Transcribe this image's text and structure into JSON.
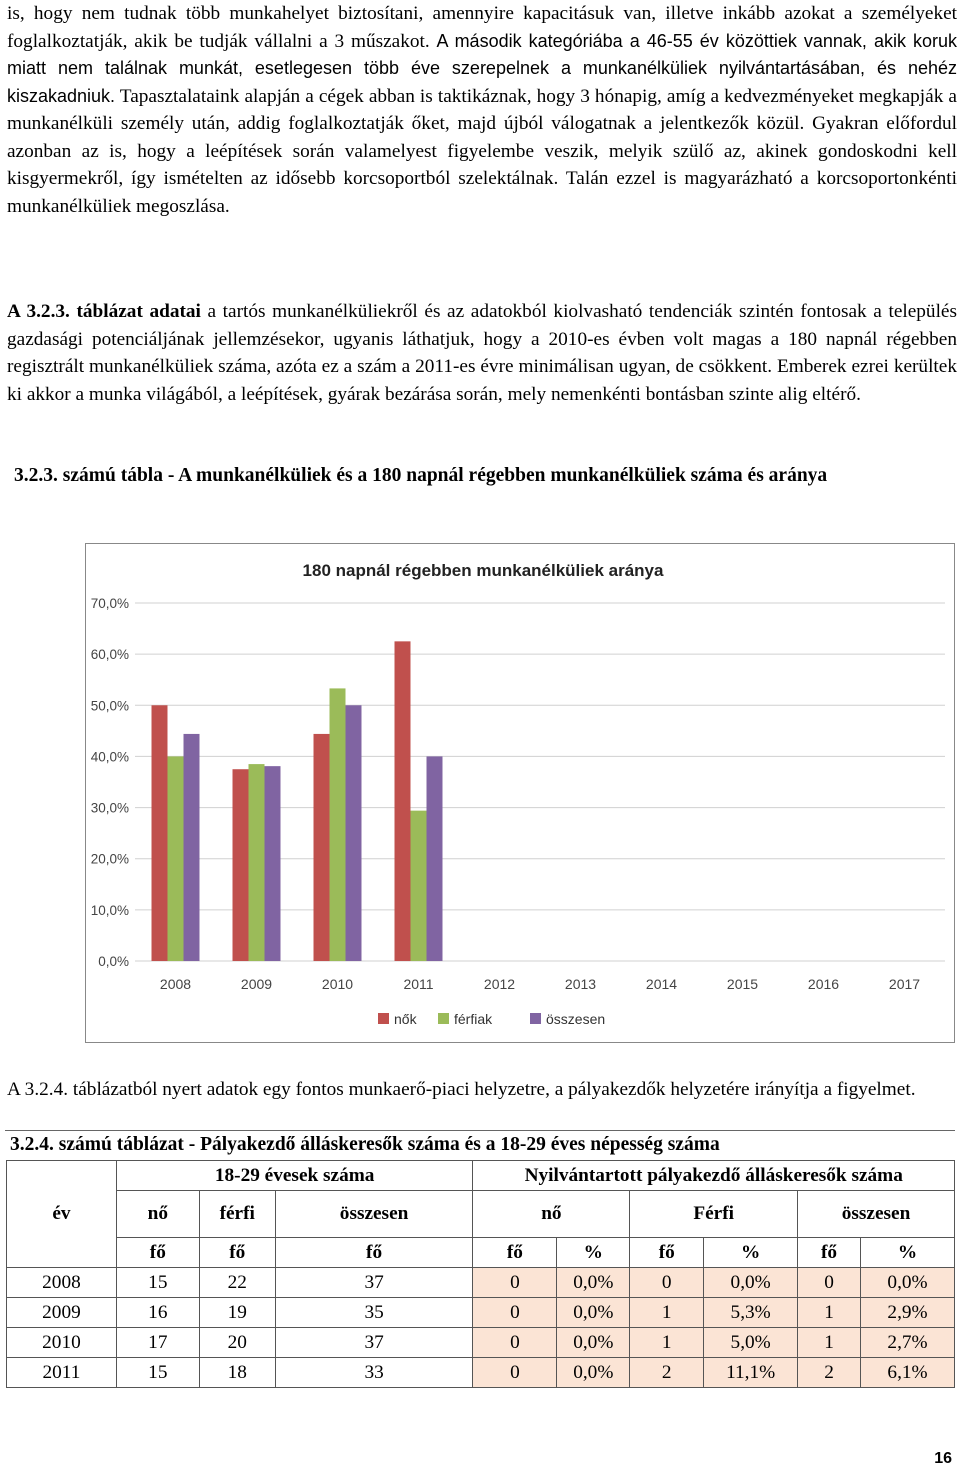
{
  "para1": {
    "line1": "is, hogy nem tudnak több munkahelyet biztosítani, amennyire kapacitásuk van, illetve inkább azokat a személyeket foglalkoztatják, akik be tudják vállalni a 3 műszakot.",
    "line2": "A második kategóriába a 46-55 év közöttiek vannak, akik koruk miatt nem találnak munkát, esetlegesen több éve szerepelnek a munkanélküliek nyilvántartásában, és nehéz kiszakadniuk.",
    "line3": "Tapasztalataink alapján a cégek abban is taktikáznak, hogy 3 hónapig, amíg a kedvezményeket megkapják a munkanélküli személy után, addig foglalkoztatják őket, majd újból válogatnak a jelentkezők közül.",
    "line4": "Gyakran előfordul azonban az is, hogy a leépítések során valamelyest figyelembe veszik, melyik szülő az, akinek gondoskodni kell kisgyermekről, így ismételten az idősebb korcsoportból szelektálnak. Talán ezzel is magyarázható a korcsoportonkénti munkanélküliek megoszlása."
  },
  "para2": {
    "bold": "A 3.2.3. táblázat adatai",
    "text1": " a tartós munkanélküliekről és az adatokból kiolvasható tendenciák szintén fontosak a település gazdasági potenciáljának jellemzésekor, ugyanis láthatjuk, hogy a 2010-es évben volt magas a 180 napnál régebben regisztrált munkanélküliek száma, azóta ez a szám a 2011-es évre minimálisan ugyan, de csökkent.",
    "text2": " Emberek ezrei kerültek ki akkor a munka világából, a leépítések, gyárak bezárása során, mely nemenkénti bontásban szinte alig eltérő."
  },
  "chart_heading": "3.2.3. számú tábla - A munkanélküliek és a 180 napnál régebben munkanélküliek száma és aránya",
  "chart_data": {
    "type": "bar",
    "title": "180 napnál régebben munkanélküliek aránya",
    "categories": [
      "2008",
      "2009",
      "2010",
      "2011",
      "2012",
      "2013",
      "2014",
      "2015",
      "2016",
      "2017"
    ],
    "series": [
      {
        "name": "nők",
        "color": "#c0504d",
        "values": [
          50.0,
          37.5,
          44.4,
          62.5,
          null,
          null,
          null,
          null,
          null,
          null
        ]
      },
      {
        "name": "férfiak",
        "color": "#9bbb59",
        "values": [
          40.0,
          38.5,
          53.3,
          29.4,
          null,
          null,
          null,
          null,
          null,
          null
        ]
      },
      {
        "name": "összesen",
        "color": "#8064a2",
        "values": [
          44.4,
          38.1,
          50.0,
          40.0,
          null,
          null,
          null,
          null,
          null,
          null
        ]
      }
    ],
    "yticks": [
      "0,0%",
      "10,0%",
      "20,0%",
      "30,0%",
      "40,0%",
      "50,0%",
      "60,0%",
      "70,0%"
    ],
    "ylim": [
      0,
      70
    ],
    "legend": "bottom"
  },
  "para3": "A 3.2.4. táblázatból nyert adatok egy fontos munkaerő-piaci helyzetre, a pályakezdők helyzetére irányítja a figyelmet.",
  "table": {
    "title": "3.2.4. számú táblázat - Pályakezdő álláskeresők száma és a 18-29 éves népesség száma",
    "group1": "18-29 évesek száma",
    "group2": "Nyilvántartott pályakezdő álláskeresők száma",
    "col_ev": "év",
    "col_no": "nő",
    "col_ferfi": "férfi",
    "col_osszesen": "összesen",
    "col_no2": "nő",
    "col_ferfi2": "Férfi",
    "col_osszesen2": "összesen",
    "unit_fo": "fő",
    "unit_pct": "%",
    "rows": [
      [
        "2008",
        "15",
        "22",
        "37",
        "0",
        "0,0%",
        "0",
        "0,0%",
        "0",
        "0,0%"
      ],
      [
        "2009",
        "16",
        "19",
        "35",
        "0",
        "0,0%",
        "1",
        "5,3%",
        "1",
        "2,9%"
      ],
      [
        "2010",
        "17",
        "20",
        "37",
        "0",
        "0,0%",
        "1",
        "5,0%",
        "1",
        "2,7%"
      ],
      [
        "2011",
        "15",
        "18",
        "33",
        "0",
        "0,0%",
        "2",
        "11,1%",
        "2",
        "6,1%"
      ]
    ]
  },
  "page_number": "16"
}
